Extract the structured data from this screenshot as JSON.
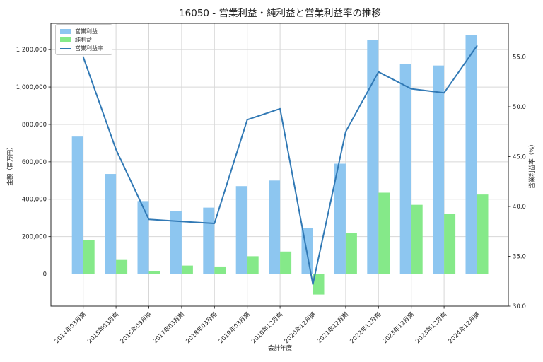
{
  "title": "16050 - 営業利益・純利益と営業利益率の推移",
  "chart_data": {
    "type": "bar+line",
    "categories": [
      "2014年03月期",
      "2015年03月期",
      "2016年03月期",
      "2017年03月期",
      "2018年03月期",
      "2019年03月期",
      "2019年12月期",
      "2020年12月期",
      "2021年12月期",
      "2022年12月期",
      "2023年12月期",
      "2023年12月期",
      "2024年12月期"
    ],
    "series": [
      {
        "name": "営業利益",
        "type": "bar",
        "axis": "left",
        "color": "#8dc6f0",
        "values": [
          735000,
          535000,
          390000,
          335000,
          355000,
          470000,
          500000,
          245000,
          590000,
          1250000,
          1125000,
          1115000,
          1280000
        ]
      },
      {
        "name": "純利益",
        "type": "bar",
        "axis": "left",
        "color": "#85e989",
        "values": [
          180000,
          75000,
          15000,
          45000,
          40000,
          95000,
          120000,
          -110000,
          220000,
          435000,
          370000,
          320000,
          425000
        ]
      },
      {
        "name": "営業利益率",
        "type": "line",
        "axis": "right",
        "color": "#3179b5",
        "values": [
          55.0,
          45.7,
          38.7,
          38.5,
          38.3,
          48.7,
          49.8,
          32.2,
          47.5,
          53.5,
          51.8,
          51.4,
          56.1
        ]
      }
    ],
    "xlabel": "会計年度",
    "ylabel_left": "金額（百万円）",
    "ylabel_right": "営業利益率（%）",
    "yticks_left": {
      "values": [
        0,
        200000,
        400000,
        600000,
        800000,
        1000000,
        1200000
      ],
      "labels": [
        "0",
        "200,000",
        "400,000",
        "600,000",
        "800,000",
        "1,000,000",
        "1,200,000"
      ]
    },
    "yticks_right": {
      "values": [
        30,
        35,
        40,
        45,
        50,
        55
      ],
      "labels": [
        "30.0",
        "35.0",
        "40.0",
        "45.0",
        "50.0",
        "55.0"
      ]
    },
    "ylim_left": [
      -172000,
      1340600
    ],
    "ylim_right": [
      30.0,
      58.37
    ],
    "grid": true,
    "legend_position": "upper left",
    "colors": {
      "grid": "#d7d7d7",
      "spine": "#262626",
      "text": "#1f1f1f"
    }
  }
}
